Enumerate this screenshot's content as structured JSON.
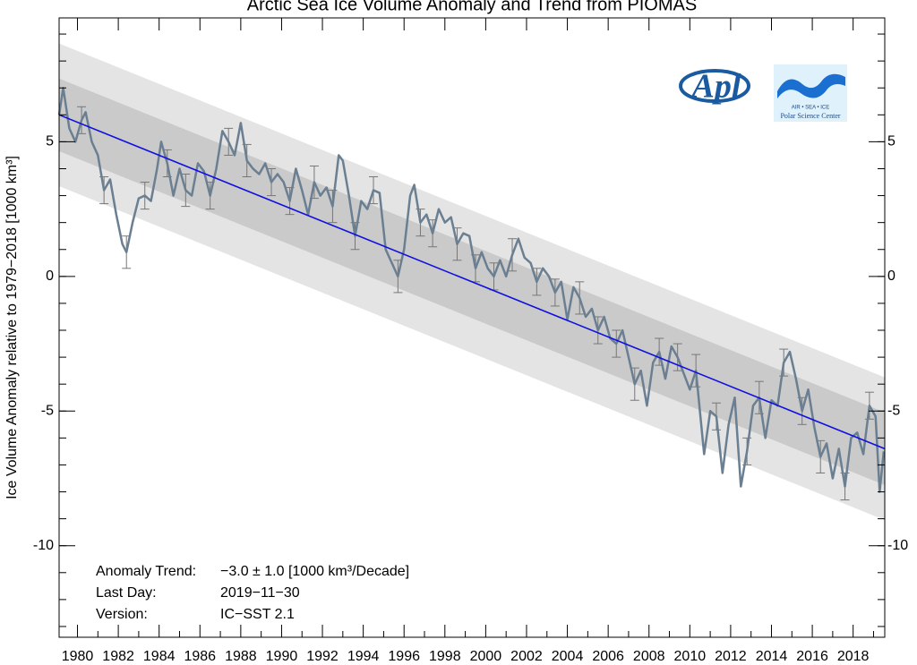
{
  "chart_data": {
    "type": "line",
    "title": "Arctic Sea Ice Volume Anomaly and Trend from PIOMAS",
    "y_label": "Ice Volume Anomaly relative to 1979−2018 [1000 km³]",
    "xlim": [
      1979.1,
      2019.55
    ],
    "ylim": [
      -13.4,
      9.6
    ],
    "xticks": [
      1980,
      1982,
      1984,
      1986,
      1988,
      1990,
      1992,
      1994,
      1996,
      1998,
      2000,
      2002,
      2004,
      2006,
      2008,
      2010,
      2012,
      2014,
      2016,
      2018
    ],
    "yticks": [
      -10,
      -5,
      0,
      5
    ],
    "bands": [
      {
        "half_width": 2.65,
        "color": "#e4e4e4"
      },
      {
        "half_width": 1.35,
        "color": "#cacaca"
      }
    ],
    "trend": {
      "x": [
        1979.1,
        2019.55
      ],
      "values": [
        6.0,
        -6.4
      ],
      "color": "#1010e0"
    },
    "series": [
      {
        "color": "#6a7f91",
        "x": [
          1979.1,
          1979.3,
          1979.6,
          1979.9,
          1980.2,
          1980.4,
          1980.7,
          1981.0,
          1981.3,
          1981.6,
          1981.9,
          1982.2,
          1982.4,
          1982.7,
          1983.0,
          1983.3,
          1983.6,
          1983.9,
          1984.1,
          1984.4,
          1984.7,
          1985.0,
          1985.3,
          1985.6,
          1985.9,
          1986.2,
          1986.5,
          1986.8,
          1987.1,
          1987.4,
          1987.7,
          1988.0,
          1988.3,
          1988.6,
          1988.9,
          1989.2,
          1989.5,
          1989.8,
          1990.1,
          1990.4,
          1990.7,
          1991.0,
          1991.3,
          1991.6,
          1991.9,
          1992.2,
          1992.5,
          1992.8,
          1993.0,
          1993.3,
          1993.6,
          1993.9,
          1994.2,
          1994.5,
          1994.8,
          1995.1,
          1995.4,
          1995.7,
          1996.0,
          1996.3,
          1996.5,
          1996.8,
          1997.1,
          1997.4,
          1997.7,
          1998.0,
          1998.3,
          1998.6,
          1998.9,
          1999.2,
          1999.5,
          1999.8,
          2000.1,
          2000.4,
          2000.7,
          2001.0,
          2001.3,
          2001.6,
          2001.9,
          2002.2,
          2002.5,
          2002.8,
          2003.1,
          2003.4,
          2003.7,
          2004.0,
          2004.3,
          2004.6,
          2004.9,
          2005.2,
          2005.5,
          2005.8,
          2006.1,
          2006.4,
          2006.7,
          2007.0,
          2007.3,
          2007.6,
          2007.9,
          2008.2,
          2008.5,
          2008.8,
          2009.1,
          2009.4,
          2009.7,
          2010.0,
          2010.3,
          2010.7,
          2011.0,
          2011.3,
          2011.6,
          2011.9,
          2012.2,
          2012.5,
          2012.8,
          2013.1,
          2013.4,
          2013.7,
          2014.0,
          2014.3,
          2014.6,
          2014.9,
          2015.2,
          2015.5,
          2015.8,
          2016.1,
          2016.4,
          2016.7,
          2017.0,
          2017.3,
          2017.6,
          2017.9,
          2018.2,
          2018.5,
          2018.8,
          2019.1,
          2019.3,
          2019.5
        ],
        "values": [
          6.0,
          7.0,
          5.5,
          5.0,
          5.8,
          6.1,
          5.0,
          4.5,
          3.2,
          3.6,
          2.3,
          1.2,
          0.9,
          2.0,
          2.9,
          3.0,
          2.8,
          4.0,
          5.0,
          4.2,
          3.0,
          4.0,
          3.2,
          3.0,
          4.2,
          3.9,
          3.0,
          4.0,
          5.4,
          5.0,
          4.5,
          5.7,
          4.3,
          4.0,
          3.8,
          4.2,
          3.5,
          3.8,
          3.5,
          2.8,
          4.0,
          3.2,
          2.3,
          3.5,
          3.0,
          3.3,
          2.6,
          4.5,
          4.3,
          3.0,
          1.5,
          2.8,
          2.5,
          3.2,
          3.1,
          1.0,
          0.5,
          0.0,
          1.0,
          3.0,
          3.4,
          2.0,
          2.3,
          1.6,
          2.5,
          2.0,
          2.2,
          1.2,
          1.6,
          1.5,
          0.3,
          0.9,
          0.3,
          0.0,
          0.6,
          0.0,
          0.8,
          1.4,
          0.7,
          0.5,
          -0.2,
          0.3,
          0.0,
          -0.6,
          -0.2,
          -1.6,
          -0.4,
          -0.8,
          -1.5,
          -1.2,
          -2.0,
          -1.5,
          -2.3,
          -2.5,
          -2.0,
          -3.0,
          -4.0,
          -3.5,
          -4.8,
          -3.2,
          -2.8,
          -3.8,
          -2.6,
          -3.0,
          -3.6,
          -4.2,
          -3.5,
          -6.6,
          -5.0,
          -5.2,
          -7.3,
          -5.5,
          -4.5,
          -7.8,
          -6.5,
          -4.8,
          -4.5,
          -6.0,
          -4.6,
          -4.8,
          -3.2,
          -2.8,
          -3.8,
          -5.0,
          -4.2,
          -5.6,
          -6.7,
          -6.2,
          -7.5,
          -6.4,
          -7.8,
          -6.0,
          -5.8,
          -6.6,
          -4.8,
          -5.2,
          -8.0,
          -6.5
        ]
      }
    ],
    "error_bars": {
      "color": "#777777",
      "x": [
        1980.2,
        1981.3,
        1982.4,
        1983.3,
        1984.4,
        1985.3,
        1986.5,
        1987.4,
        1988.3,
        1989.5,
        1990.4,
        1991.6,
        1992.5,
        1993.6,
        1994.5,
        1995.7,
        1996.8,
        1997.4,
        1998.6,
        1999.5,
        2000.4,
        2001.3,
        2002.5,
        2003.4,
        2004.6,
        2005.5,
        2006.4,
        2007.3,
        2008.5,
        2009.4,
        2010.3,
        2011.3,
        2012.8,
        2013.4,
        2014.6,
        2015.5,
        2016.4,
        2017.6,
        2018.8
      ],
      "values": [
        5.8,
        3.2,
        0.9,
        3.0,
        4.2,
        3.2,
        3.0,
        5.0,
        4.3,
        3.5,
        2.8,
        3.5,
        2.6,
        1.5,
        3.2,
        0.0,
        2.0,
        1.6,
        1.2,
        0.3,
        0.0,
        0.8,
        -0.2,
        -0.6,
        -0.8,
        -2.0,
        -2.5,
        -4.0,
        -2.8,
        -3.0,
        -3.5,
        -5.2,
        -6.5,
        -4.5,
        -3.2,
        -5.0,
        -6.7,
        -7.8,
        -4.8
      ],
      "errors": [
        0.5,
        0.5,
        0.6,
        0.5,
        0.5,
        0.6,
        0.5,
        0.5,
        0.6,
        0.5,
        0.5,
        0.6,
        0.6,
        0.5,
        0.5,
        0.6,
        0.5,
        0.5,
        0.6,
        0.5,
        0.5,
        0.6,
        0.5,
        0.5,
        0.6,
        0.5,
        0.5,
        0.6,
        0.5,
        0.5,
        0.6,
        0.5,
        0.5,
        0.6,
        0.5,
        0.5,
        0.6,
        0.5,
        0.5
      ]
    },
    "annotations": [
      [
        "Anomaly Trend:",
        "−3.0 ± 1.0 [1000 km³/Decade]"
      ],
      [
        "Last Day:",
        "2019−11−30"
      ],
      [
        "Version:",
        "IC−SST 2.1"
      ]
    ],
    "logos": {
      "apl": "Apl",
      "psc_top": "AIR  •  SEA  •  ICE",
      "psc_bottom": "Polar Science Center"
    }
  }
}
